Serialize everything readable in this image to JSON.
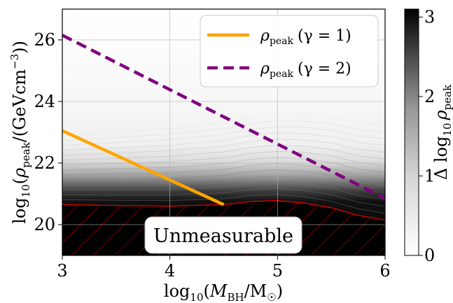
{
  "chart_data": {
    "type": "heatmap",
    "title": "",
    "xlabel_parts": [
      "log",
      "10",
      "(",
      "M",
      "BH",
      "/M",
      "☉",
      ")"
    ],
    "ylabel_parts": [
      "log",
      "10",
      "(",
      "ρ",
      "peak",
      "/(GeVcm",
      "−3",
      "))"
    ],
    "xlim": [
      3,
      6
    ],
    "ylim": [
      19,
      27
    ],
    "x_ticks": [
      "3",
      "4",
      "5",
      "6"
    ],
    "y_ticks": [
      "20",
      "22",
      "24",
      "26"
    ],
    "grid": true,
    "legend_placement": "top-right",
    "series": [
      {
        "name_parts": [
          "ρ",
          "peak",
          "(γ = 1)"
        ],
        "color": "#FFA500",
        "style": "solid",
        "x": [
          3,
          4.5
        ],
        "y": [
          23.05,
          20.65
        ]
      },
      {
        "name_parts": [
          "ρ",
          "peak",
          "(γ = 2)"
        ],
        "color": "#800080",
        "style": "dashed",
        "x": [
          3,
          6
        ],
        "y": [
          26.15,
          20.85
        ]
      }
    ],
    "unmeasurable_boundary": {
      "x": [
        3,
        3.5,
        4,
        4.5,
        4.75,
        5,
        5.25,
        5.5,
        5.75,
        6
      ],
      "y": [
        20.65,
        20.62,
        20.6,
        20.65,
        20.75,
        20.78,
        20.7,
        20.55,
        20.3,
        20.15
      ]
    },
    "annotation": "Unmeasurable",
    "colorbar": {
      "label_parts": [
        "Δ log",
        "10",
        "ρ",
        "peak"
      ],
      "range": [
        0,
        3.1
      ],
      "ticks": [
        "0",
        "1",
        "2",
        "3"
      ],
      "colormap": "Greys"
    }
  }
}
